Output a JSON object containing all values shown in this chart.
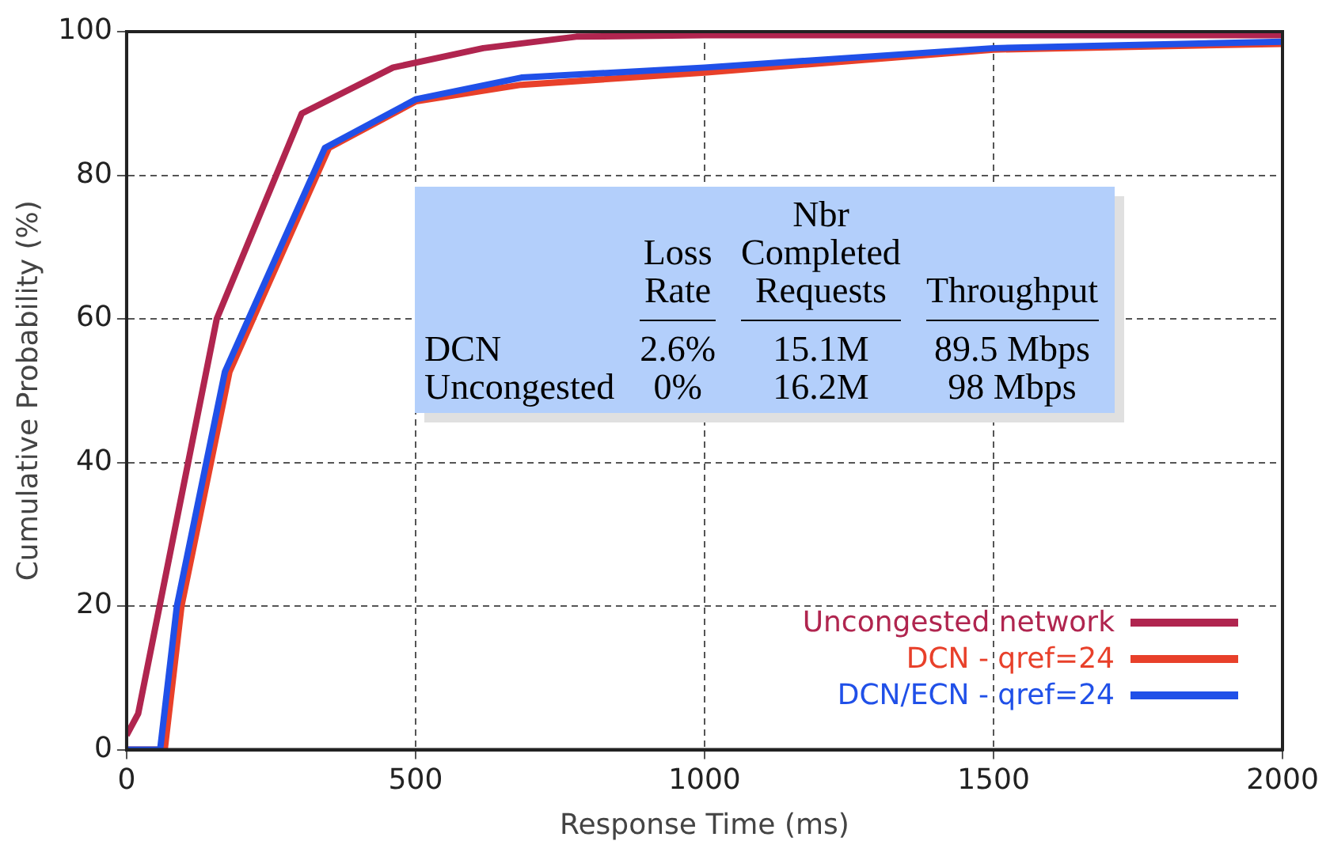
{
  "chart_data": {
    "type": "line",
    "xlabel": "Response Time (ms)",
    "ylabel": "Cumulative Probability (%)",
    "xlim": [
      0,
      2000
    ],
    "xticks": [
      0,
      500,
      1000,
      1500,
      2000
    ],
    "ylim": [
      0,
      100
    ],
    "yticks": [
      0,
      20,
      40,
      60,
      80,
      100
    ],
    "grid": true,
    "legend": "bottom right",
    "line_style": "solid",
    "marker": "none",
    "series": [
      {
        "name": "Uncongested network",
        "color": "#b0254f",
        "x": [
          0,
          20,
          156,
          303,
          461,
          617,
          778,
          1000,
          1500,
          2000
        ],
        "values": [
          2,
          5,
          60,
          88.6,
          95,
          97.7,
          99.3,
          99.5,
          99.5,
          99.5
        ]
      },
      {
        "name": "DCN - qref=24",
        "color": "#e8402a",
        "x": [
          0,
          66,
          95,
          178,
          350,
          501,
          683,
          1000,
          1500,
          2000
        ],
        "values": [
          0,
          0,
          20,
          52.6,
          83.8,
          90.3,
          92.6,
          94.3,
          97.5,
          98.3
        ]
      },
      {
        "name": "DCN/ECN - qref=24",
        "color": "#2050e8",
        "x": [
          0,
          58,
          87,
          170,
          343,
          501,
          683,
          1000,
          1500,
          2000
        ],
        "values": [
          0,
          0,
          20,
          52.6,
          83.8,
          90.6,
          93.6,
          95,
          97.7,
          98.6
        ]
      }
    ],
    "annotations": [
      "Loss\nRate",
      "Nbr\nCompleted\nRequests",
      "Throughput",
      "DCN",
      "2.6%",
      "15.1M",
      "89.5 Mbps",
      "Uncongested",
      "0%",
      "16.2M",
      "98 Mbps"
    ]
  }
}
